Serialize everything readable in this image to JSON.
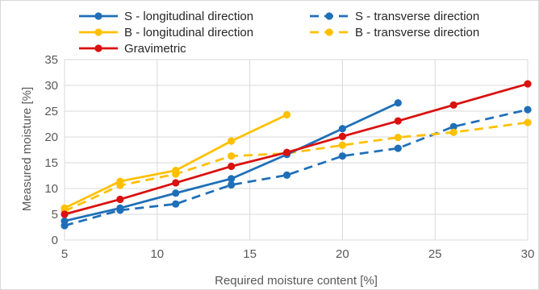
{
  "chart_data": {
    "type": "line",
    "xlabel": "Required moisture content [%]",
    "ylabel": "Measured moisture [%]",
    "xlim": [
      5,
      30
    ],
    "ylim": [
      0,
      35
    ],
    "x_ticks": [
      5,
      10,
      15,
      20,
      25,
      30
    ],
    "y_ticks": [
      0,
      5,
      10,
      15,
      20,
      25,
      30,
      35
    ],
    "grid": true,
    "legend_position": "top",
    "series": [
      {
        "name": "S - longitudinal direction",
        "color": "#1f6fb8",
        "dash": "solid",
        "x": [
          5,
          8,
          11,
          14,
          17,
          20,
          23
        ],
        "y": [
          3.7,
          6.2,
          9.1,
          11.9,
          16.6,
          21.6,
          26.6
        ]
      },
      {
        "name": "S - transverse direction",
        "color": "#1f6fb8",
        "dash": "dashed",
        "x": [
          5,
          8,
          11,
          14,
          17,
          20,
          23,
          26,
          30
        ],
        "y": [
          2.8,
          5.8,
          7.0,
          10.7,
          12.6,
          16.3,
          17.8,
          22.0,
          25.3
        ]
      },
      {
        "name": "B - longitudinal direction",
        "color": "#ffc000",
        "dash": "solid",
        "x": [
          5,
          8,
          11,
          14,
          17
        ],
        "y": [
          6.2,
          11.4,
          13.5,
          19.2,
          24.3
        ]
      },
      {
        "name": "B - transverse direction",
        "color": "#ffc000",
        "dash": "dashed",
        "x": [
          5,
          8,
          11,
          14,
          17,
          20,
          23,
          26,
          30
        ],
        "y": [
          5.6,
          10.6,
          12.8,
          16.3,
          16.8,
          18.4,
          19.9,
          20.9,
          22.8
        ]
      },
      {
        "name": "Gravimetric",
        "color": "#d9110f",
        "dash": "solid",
        "x": [
          5,
          8,
          11,
          14,
          17,
          20,
          23,
          26,
          30
        ],
        "y": [
          5.0,
          7.9,
          11.1,
          14.3,
          17.0,
          20.1,
          23.1,
          26.2,
          30.3
        ]
      }
    ]
  }
}
